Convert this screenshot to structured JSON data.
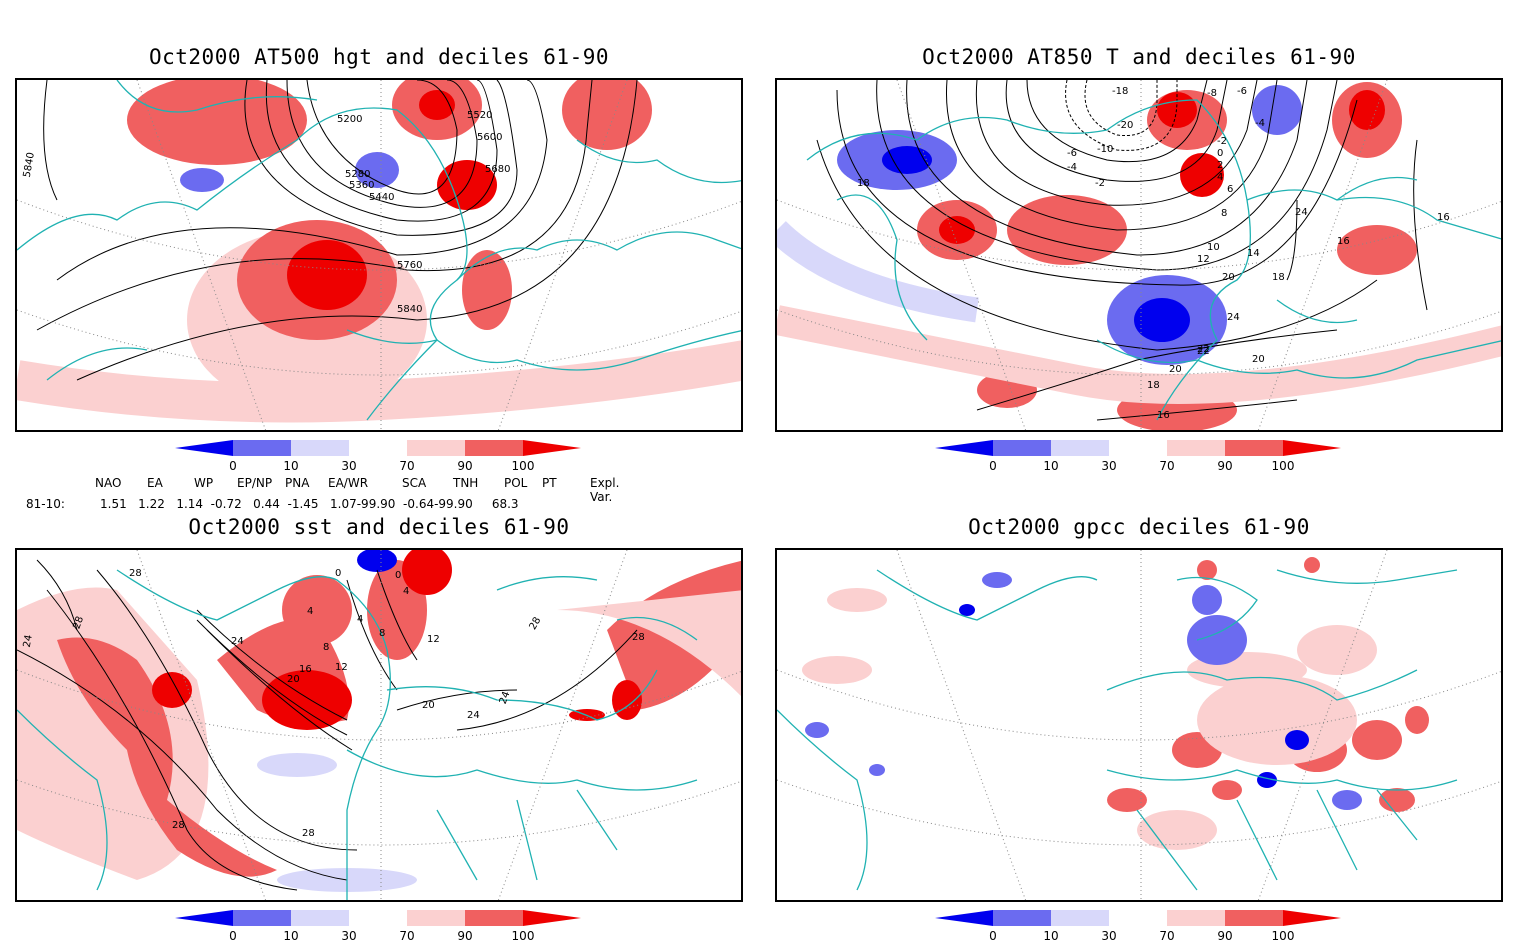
{
  "panels": [
    {
      "title": "Oct2000 AT500 hgt and deciles 61-90",
      "contour_labels": [
        "5200",
        "5280",
        "5360",
        "5440",
        "5520",
        "5600",
        "5680",
        "5760",
        "5840",
        "5840"
      ]
    },
    {
      "title": "Oct2000 AT850 T and deciles 61-90",
      "contour_labels": [
        "-18",
        "-8",
        "-6",
        "-4",
        "-2",
        "0",
        "2",
        "4",
        "6",
        "8",
        "10",
        "12",
        "14",
        "16",
        "16",
        "18",
        "18",
        "20",
        "20",
        "22",
        "24",
        "24",
        "22",
        "20",
        "18",
        "16",
        "-2",
        "-4",
        "-6",
        "-10",
        "-20"
      ]
    },
    {
      "title": "Oct2000 sst and deciles 61-90",
      "contour_labels": [
        "28",
        "24",
        "28",
        "0",
        "0",
        "4",
        "4",
        "8",
        "4",
        "8",
        "12",
        "16",
        "20",
        "24",
        "12",
        "20",
        "24",
        "28",
        "28",
        "24",
        "28",
        "28"
      ]
    },
    {
      "title": "Oct2000 gpcc deciles 61-90",
      "contour_labels": []
    }
  ],
  "colorbar": {
    "ticks": [
      "0",
      "10",
      "30",
      "70",
      "90",
      "100"
    ],
    "colors": [
      "#0000ee",
      "#6b6bf0",
      "#d8d8fa",
      "#ffffff",
      "#fbd0d0",
      "#f06060",
      "#ee0000"
    ]
  },
  "indices": {
    "headers": [
      "NAO",
      "EA",
      "WP",
      "EP/NP",
      "PNA",
      "EA/WR",
      "SCA",
      "TNH",
      "POL",
      "PT",
      "Expl. Var."
    ],
    "row_label": "81-10:",
    "values": "1.51   1.22   1.14  -0.72   0.44  -1.45   1.07-99.90  -0.64-99.90     68.3"
  },
  "colors": {
    "coast": "#20b2b2",
    "contour": "#000000",
    "grid": "#888888"
  }
}
